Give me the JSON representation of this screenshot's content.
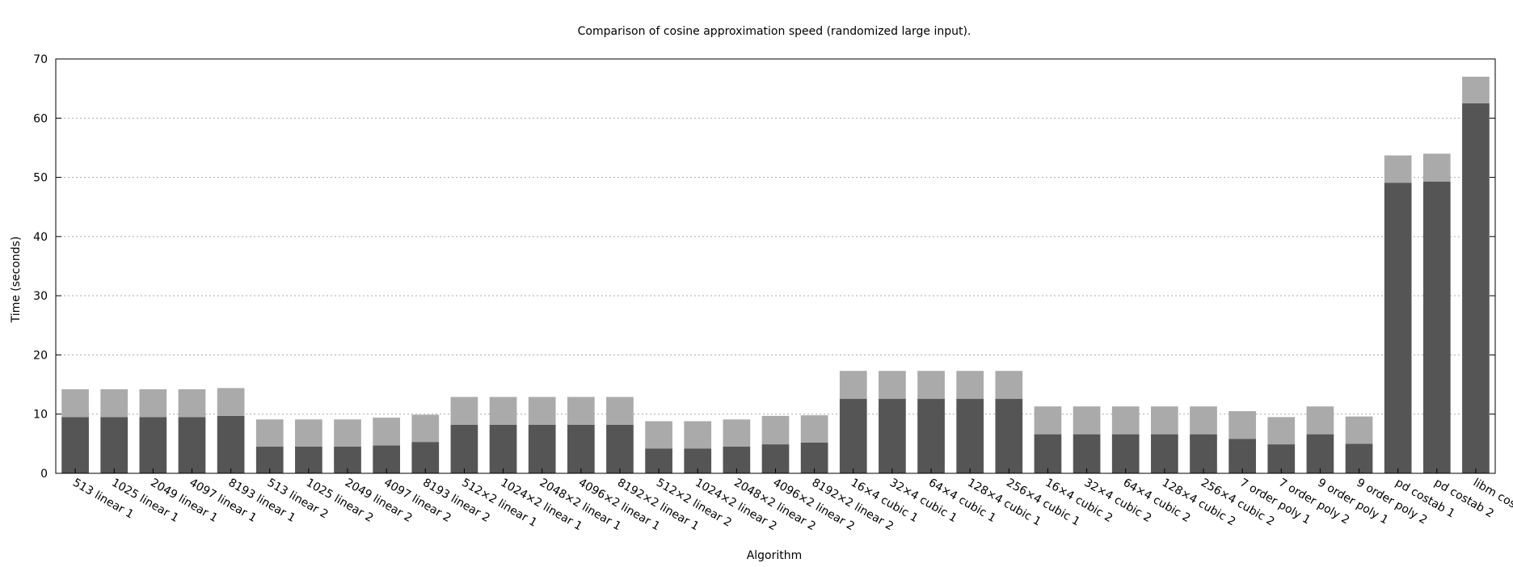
{
  "chart_data": {
    "type": "bar",
    "title": "Comparison of cosine approximation speed (randomized large input).",
    "xlabel": "Algorithm",
    "ylabel": "Time (seconds)",
    "ylim": [
      0,
      70
    ],
    "yticks": [
      0,
      10,
      20,
      30,
      40,
      50,
      60,
      70
    ],
    "grid": true,
    "stacked": true,
    "colors": {
      "lower": "#555555",
      "upper": "#aaaaaa",
      "grid": "#aaaaaa",
      "axis": "#000000"
    },
    "categories": [
      "513 linear 1",
      "1025 linear 1",
      "2049 linear 1",
      "4097 linear 1",
      "8193 linear 1",
      "513 linear 2",
      "1025 linear 2",
      "2049 linear 2",
      "4097 linear 2",
      "8193 linear 2",
      "512×2 linear 1",
      "1024×2 linear 1",
      "2048×2 linear 1",
      "4096×2 linear 1",
      "8192×2 linear 1",
      "512×2 linear 2",
      "1024×2 linear 2",
      "2048×2 linear 2",
      "4096×2 linear 2",
      "8192×2 linear 2",
      "16×4 cubic 1",
      "32×4 cubic 1",
      "64×4 cubic 1",
      "128×4 cubic 1",
      "256×4 cubic 1",
      "16×4 cubic 2",
      "32×4 cubic 2",
      "64×4 cubic 2",
      "128×4 cubic 2",
      "256×4 cubic 2",
      "7 order poly 1",
      "7 order poly 2",
      "9 order poly 1",
      "9 order poly 2",
      "pd costab 1",
      "pd costab 2",
      "libm cosf()"
    ],
    "series": [
      {
        "values": [
          9.5,
          9.5,
          9.5,
          9.5,
          9.7,
          4.5,
          4.5,
          4.5,
          4.7,
          5.3,
          8.2,
          8.2,
          8.2,
          8.2,
          8.2,
          4.2,
          4.2,
          4.5,
          4.9,
          5.2,
          12.6,
          12.6,
          12.6,
          12.6,
          12.6,
          6.6,
          6.6,
          6.6,
          6.6,
          6.6,
          5.8,
          4.9,
          6.6,
          5.0,
          49.1,
          49.3,
          62.5
        ]
      },
      {
        "values": [
          4.7,
          4.7,
          4.7,
          4.7,
          4.7,
          4.6,
          4.6,
          4.6,
          4.7,
          4.6,
          4.7,
          4.7,
          4.7,
          4.7,
          4.7,
          4.6,
          4.6,
          4.6,
          4.8,
          4.6,
          4.7,
          4.7,
          4.7,
          4.7,
          4.7,
          4.7,
          4.7,
          4.7,
          4.7,
          4.7,
          4.7,
          4.6,
          4.7,
          4.6,
          4.6,
          4.7,
          4.5
        ]
      }
    ]
  }
}
